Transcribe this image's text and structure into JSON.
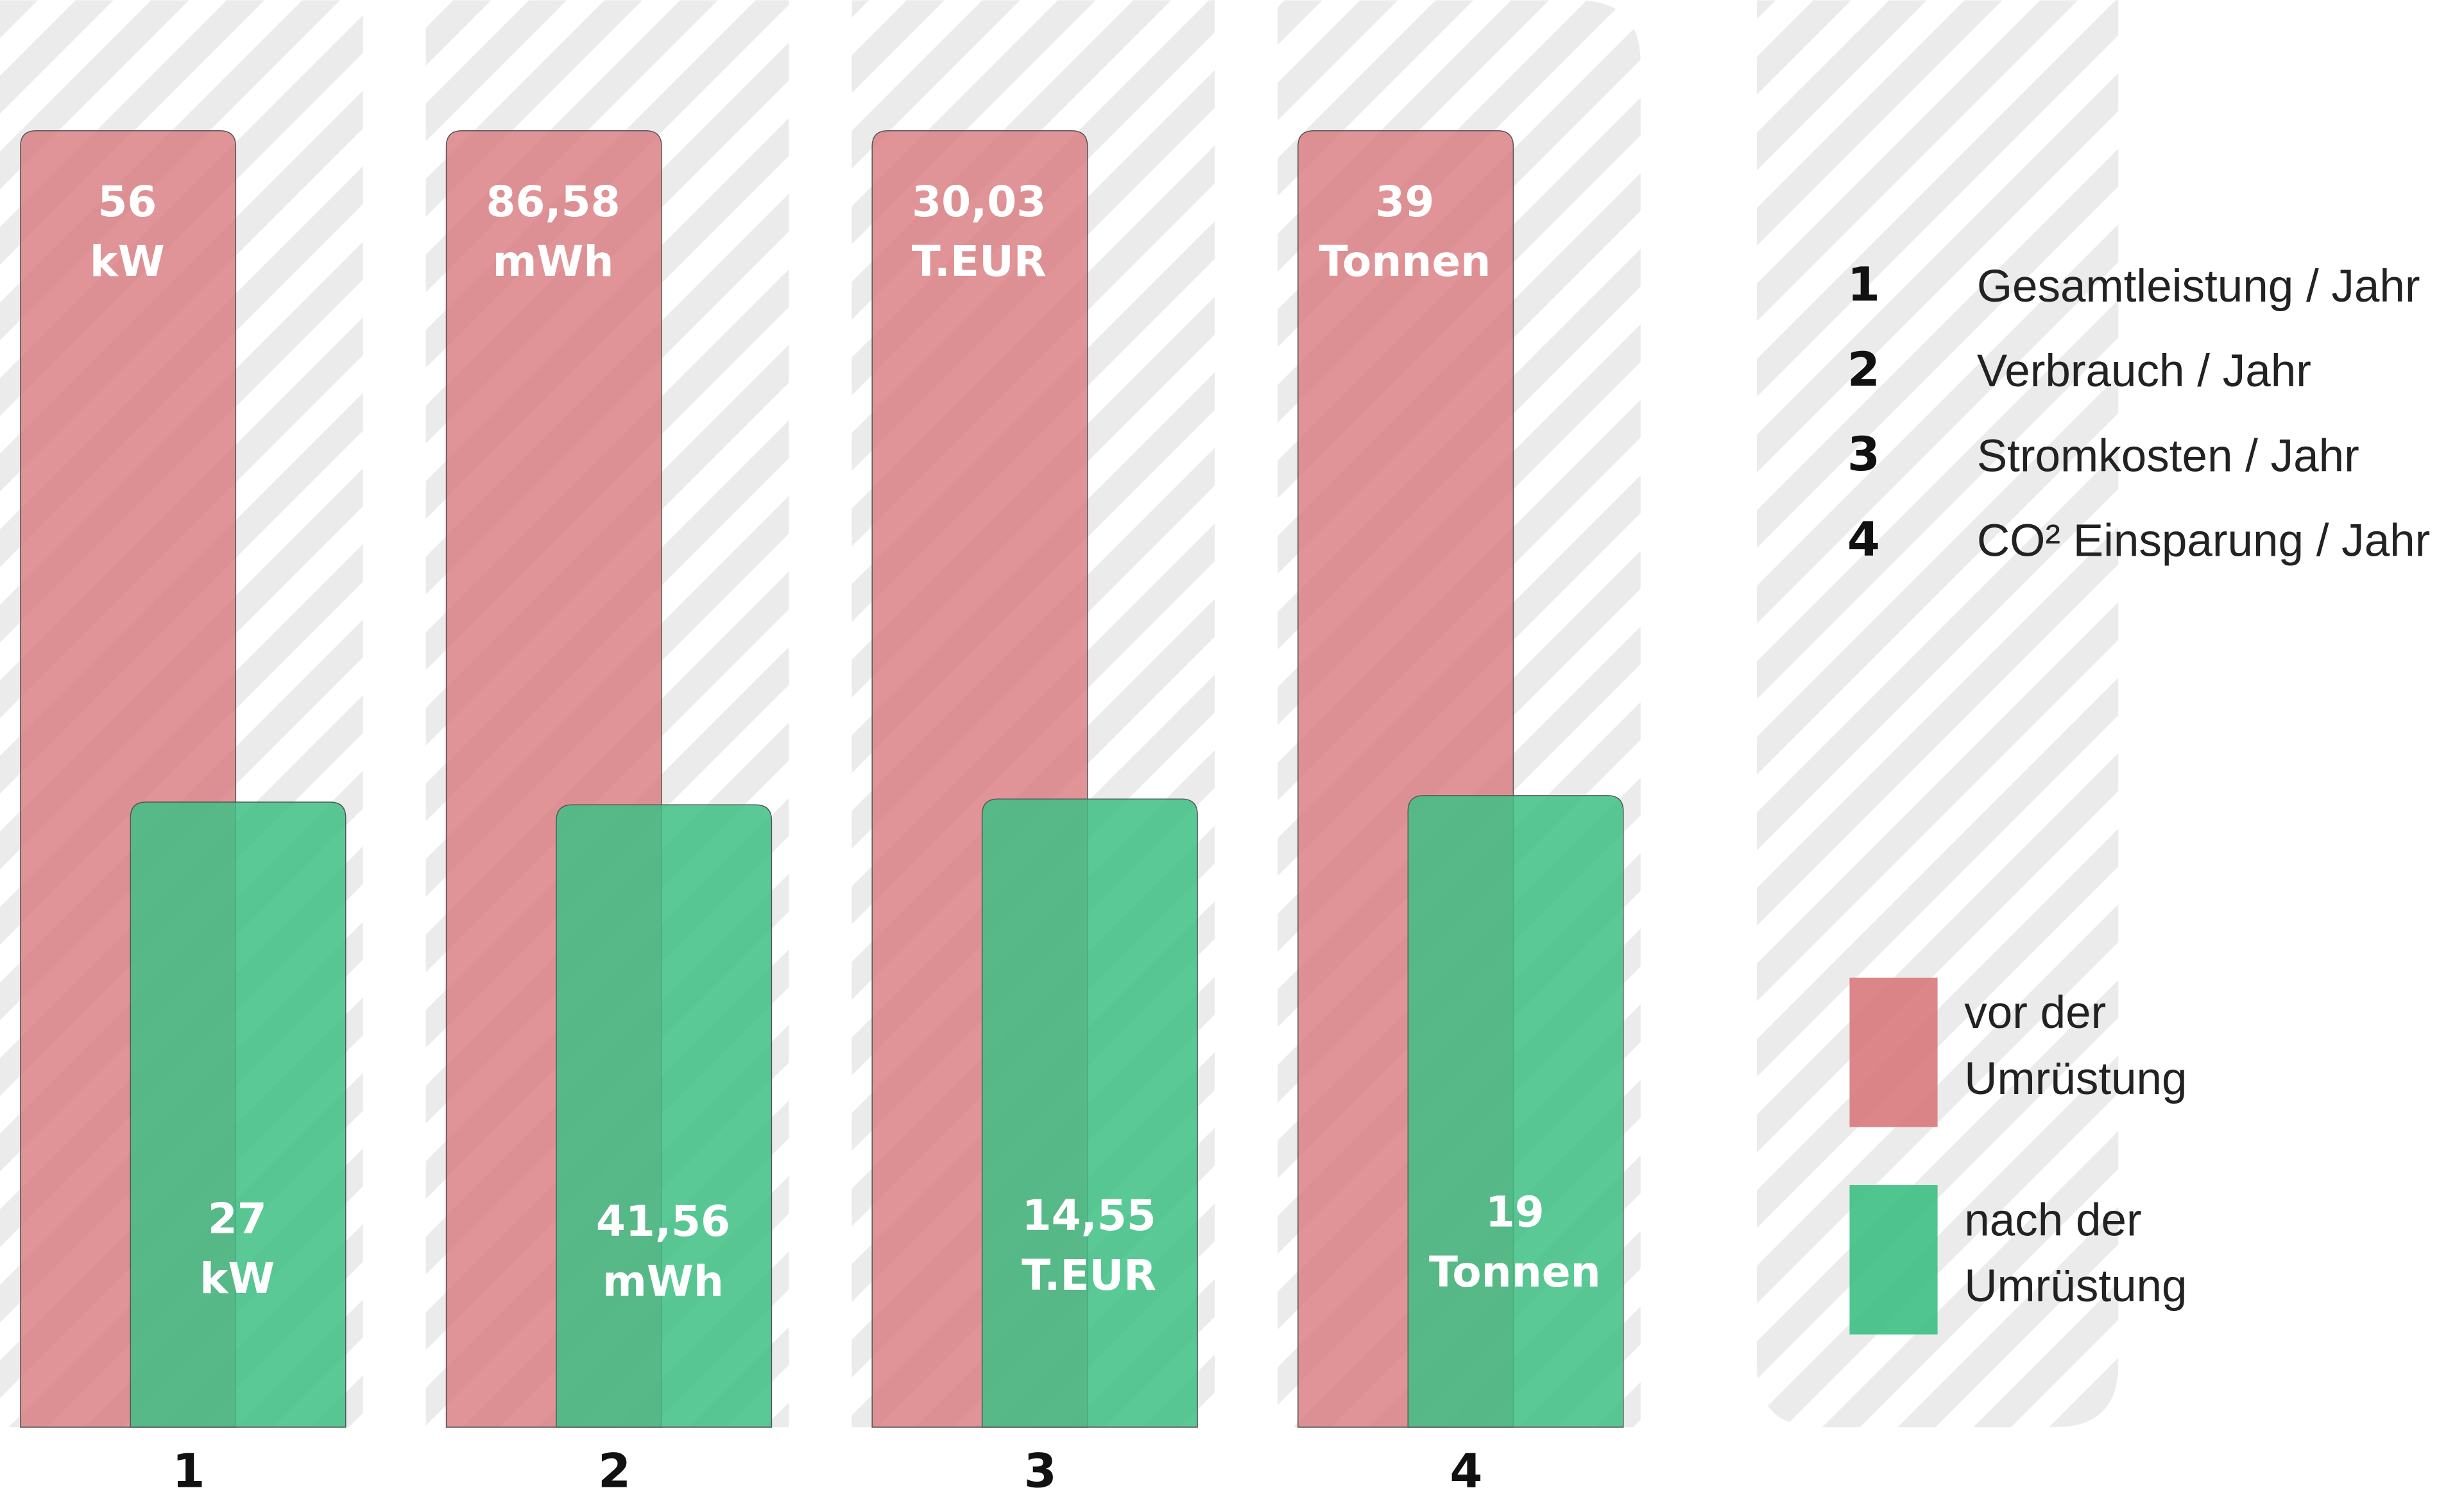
{
  "chart_data": {
    "type": "bar",
    "categories": [
      "1",
      "2",
      "3",
      "4"
    ],
    "units": [
      "kW",
      "mWh",
      "T.EUR",
      "Tonnen"
    ],
    "descriptions": [
      "Gesamtleistung / Jahr",
      "Verbrauch / Jahr",
      "Stromkosten / Jahr",
      "CO² Einsparung / Jahr"
    ],
    "series": [
      {
        "name": "vor der Umrüstung",
        "color": "#d9797d",
        "values": [
          56,
          86.58,
          30.03,
          39
        ],
        "value_labels": [
          "56",
          "86,58",
          "30,03",
          "39"
        ]
      },
      {
        "name": "nach der Umrüstung",
        "color": "#3dbf84",
        "values": [
          27,
          41.56,
          14.55,
          19
        ],
        "value_labels": [
          "27",
          "41,56",
          "14,55",
          "19"
        ]
      }
    ]
  }
}
